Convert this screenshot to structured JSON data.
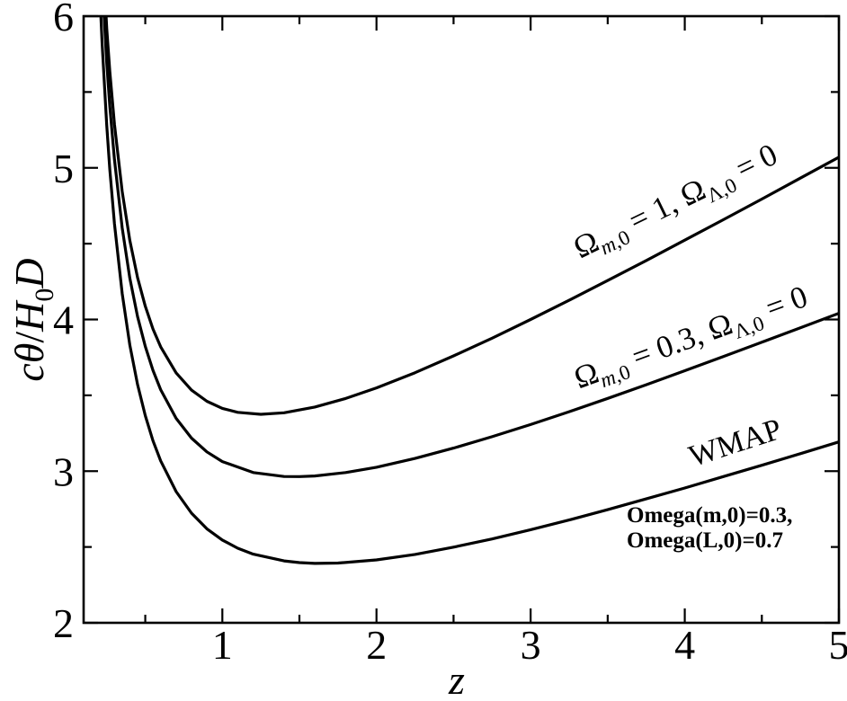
{
  "figure": {
    "background": "#ffffff",
    "ink": "#000000",
    "description": "Angular size of a standard rod versus redshift for three cosmological models"
  },
  "chart_data": {
    "type": "line",
    "title": "",
    "xlabel": "z",
    "ylabel": "cθ/H0D",
    "ylabel_parts": [
      {
        "t": "c",
        "i": true
      },
      {
        "t": "θ",
        "i": true
      },
      {
        "t": "/"
      },
      {
        "t": "H",
        "i": true
      },
      {
        "t": "0",
        "sub": true
      },
      {
        "t": "D",
        "i": true
      }
    ],
    "xlim": [
      0.1,
      5
    ],
    "ylim": [
      2,
      6
    ],
    "x_major_ticks": [
      1,
      2,
      3,
      4,
      5
    ],
    "x_minor_ticks": [
      0.5,
      1.5,
      2.5,
      3.5,
      4.5
    ],
    "y_major_ticks": [
      2,
      3,
      4,
      5,
      6
    ],
    "y_minor_ticks": [
      2.5,
      3.5,
      4.5,
      5.5
    ],
    "grid": false,
    "frame": "box",
    "legend_position": "inline-rotated-labels",
    "series": [
      {
        "name": "matter-only-flat",
        "label_text": "Ωm,0 = 1, ΩΛ,0 = 0",
        "label_parts": [
          {
            "t": "Ω"
          },
          {
            "t": "m",
            "sub": true,
            "i": true
          },
          {
            "t": ",0",
            "sub": true
          },
          {
            "t": " = 1, "
          },
          {
            "t": "Ω"
          },
          {
            "t": "Λ",
            "sub": true
          },
          {
            "t": ",0",
            "sub": true
          },
          {
            "t": " = 0"
          }
        ],
        "label_pos": {
          "x": 756,
          "y": 234,
          "angle": -26,
          "size": 35
        },
        "points": [
          [
            0.246,
            6.0
          ],
          [
            0.25,
            5.92
          ],
          [
            0.27,
            5.637
          ],
          [
            0.3,
            5.287
          ],
          [
            0.35,
            4.844
          ],
          [
            0.4,
            4.521
          ],
          [
            0.45,
            4.276
          ],
          [
            0.5,
            4.087
          ],
          [
            0.55,
            3.938
          ],
          [
            0.6,
            3.82
          ],
          [
            0.7,
            3.648
          ],
          [
            0.8,
            3.534
          ],
          [
            0.9,
            3.461
          ],
          [
            1.0,
            3.414
          ],
          [
            1.1,
            3.388
          ],
          [
            1.25,
            3.375
          ],
          [
            1.4,
            3.385
          ],
          [
            1.6,
            3.423
          ],
          [
            1.8,
            3.479
          ],
          [
            2.0,
            3.549
          ],
          [
            2.25,
            3.649
          ],
          [
            2.5,
            3.76
          ],
          [
            2.75,
            3.877
          ],
          [
            3.0,
            4.0
          ],
          [
            3.25,
            4.127
          ],
          [
            3.5,
            4.257
          ],
          [
            3.75,
            4.389
          ],
          [
            4.0,
            4.523
          ],
          [
            4.25,
            4.658
          ],
          [
            4.5,
            4.794
          ],
          [
            4.75,
            4.932
          ],
          [
            5.0,
            5.07
          ]
        ]
      },
      {
        "name": "open-matter",
        "label_text": "Ωm,0 = 0.3, ΩΛ,0 = 0",
        "label_parts": [
          {
            "t": "Ω"
          },
          {
            "t": "m",
            "sub": true,
            "i": true
          },
          {
            "t": ",0",
            "sub": true
          },
          {
            "t": " = 0.3, "
          },
          {
            "t": "Ω"
          },
          {
            "t": "Λ",
            "sub": true
          },
          {
            "t": ",0",
            "sub": true
          },
          {
            "t": " = 0"
          }
        ],
        "label_pos": {
          "x": 772,
          "y": 386,
          "angle": -20,
          "size": 35
        },
        "points": [
          [
            0.233,
            6.0
          ],
          [
            0.25,
            5.694
          ],
          [
            0.27,
            5.409
          ],
          [
            0.3,
            5.054
          ],
          [
            0.35,
            4.604
          ],
          [
            0.4,
            4.272
          ],
          [
            0.45,
            4.019
          ],
          [
            0.5,
            3.822
          ],
          [
            0.55,
            3.665
          ],
          [
            0.6,
            3.537
          ],
          [
            0.7,
            3.348
          ],
          [
            0.8,
            3.218
          ],
          [
            0.9,
            3.127
          ],
          [
            1.0,
            3.063
          ],
          [
            1.2,
            2.991
          ],
          [
            1.4,
            2.965
          ],
          [
            1.5,
            2.964
          ],
          [
            1.6,
            2.968
          ],
          [
            1.8,
            2.991
          ],
          [
            2.0,
            3.026
          ],
          [
            2.25,
            3.084
          ],
          [
            2.5,
            3.152
          ],
          [
            2.75,
            3.227
          ],
          [
            3.0,
            3.307
          ],
          [
            3.25,
            3.392
          ],
          [
            3.5,
            3.48
          ],
          [
            3.75,
            3.57
          ],
          [
            4.0,
            3.662
          ],
          [
            4.25,
            3.755
          ],
          [
            4.5,
            3.85
          ],
          [
            4.75,
            3.945
          ],
          [
            5.0,
            4.041
          ]
        ]
      },
      {
        "name": "wmap",
        "label_text": "WMAP",
        "label_parts": [
          {
            "t": "WMAP"
          }
        ],
        "label_pos": {
          "x": 821,
          "y": 503,
          "angle": -18,
          "size": 34
        },
        "points": [
          [
            0.212,
            6.0
          ],
          [
            0.22,
            5.817
          ],
          [
            0.25,
            5.281
          ],
          [
            0.27,
            4.991
          ],
          [
            0.3,
            4.631
          ],
          [
            0.35,
            4.171
          ],
          [
            0.4,
            3.831
          ],
          [
            0.45,
            3.571
          ],
          [
            0.5,
            3.366
          ],
          [
            0.55,
            3.201
          ],
          [
            0.6,
            3.068
          ],
          [
            0.7,
            2.865
          ],
          [
            0.8,
            2.723
          ],
          [
            0.9,
            2.62
          ],
          [
            1.0,
            2.546
          ],
          [
            1.1,
            2.492
          ],
          [
            1.2,
            2.453
          ],
          [
            1.4,
            2.408
          ],
          [
            1.5,
            2.397
          ],
          [
            1.6,
            2.392
          ],
          [
            1.75,
            2.394
          ],
          [
            2.0,
            2.415
          ],
          [
            2.25,
            2.451
          ],
          [
            2.5,
            2.499
          ],
          [
            2.75,
            2.553
          ],
          [
            3.0,
            2.614
          ],
          [
            3.25,
            2.678
          ],
          [
            3.5,
            2.746
          ],
          [
            3.75,
            2.817
          ],
          [
            4.0,
            2.889
          ],
          [
            4.25,
            2.964
          ],
          [
            4.5,
            3.039
          ],
          [
            4.75,
            3.115
          ],
          [
            5.0,
            3.193
          ]
        ]
      }
    ],
    "annotations": [
      {
        "name": "wmap-parameters",
        "lines": [
          "Omega(m,0)=0.3,",
          "Omega(L,0)=0.7"
        ],
        "x": 697,
        "baselines": [
          581,
          609
        ],
        "size": 25,
        "bold": true
      }
    ]
  }
}
